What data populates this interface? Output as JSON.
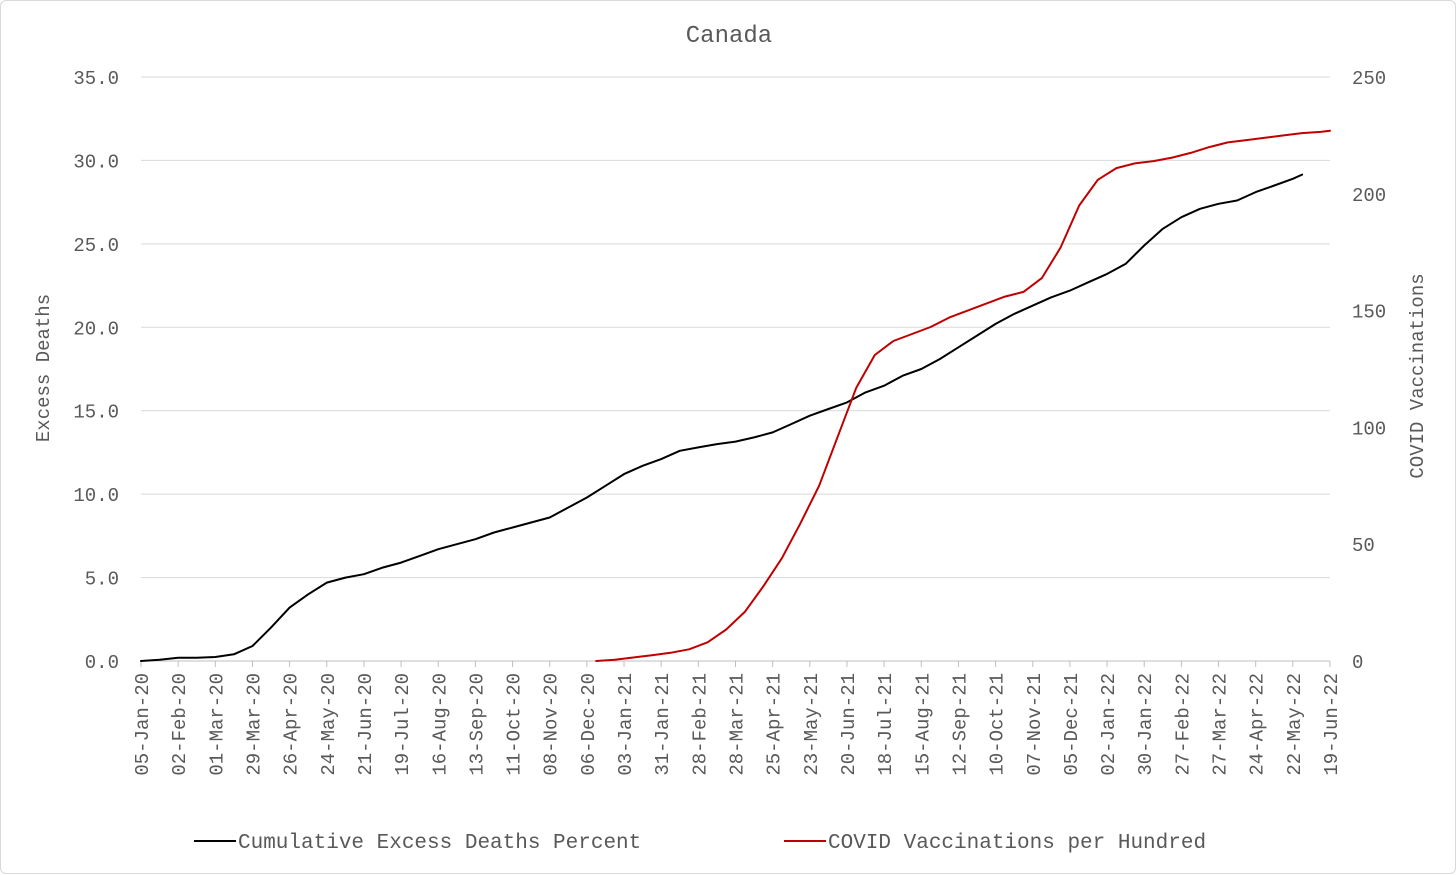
{
  "chart_data": {
    "type": "line",
    "title": "Canada",
    "ylabel_left": "Excess Deaths",
    "ylabel_right": "COVID Vaccinations",
    "ylim_left": [
      0,
      35
    ],
    "ylim_right": [
      0,
      250
    ],
    "yticks_left": [
      "0.0",
      "5.0",
      "10.0",
      "15.0",
      "20.0",
      "25.0",
      "30.0",
      "35.0"
    ],
    "yticks_right": [
      "0",
      "50",
      "100",
      "150",
      "200",
      "250"
    ],
    "x_start": "05-Jan-20",
    "x_end": "19-Jun-22",
    "xticks": [
      "05-Jan-20",
      "02-Feb-20",
      "01-Mar-20",
      "29-Mar-20",
      "26-Apr-20",
      "24-May-20",
      "21-Jun-20",
      "19-Jul-20",
      "16-Aug-20",
      "13-Sep-20",
      "11-Oct-20",
      "08-Nov-20",
      "06-Dec-20",
      "03-Jan-21",
      "31-Jan-21",
      "28-Feb-21",
      "28-Mar-21",
      "25-Apr-21",
      "23-May-21",
      "20-Jun-21",
      "18-Jul-21",
      "15-Aug-21",
      "12-Sep-21",
      "10-Oct-21",
      "07-Nov-21",
      "05-Dec-21",
      "02-Jan-22",
      "30-Jan-22",
      "27-Feb-22",
      "27-Mar-22",
      "24-Apr-22",
      "22-May-22",
      "19-Jun-22"
    ],
    "grid": true,
    "legend_position": "bottom",
    "series": [
      {
        "name": "Cumulative Excess Deaths Percent",
        "axis": "left",
        "color": "#000000",
        "x": [
          "05-Jan-20",
          "19-Jan-20",
          "02-Feb-20",
          "16-Feb-20",
          "01-Mar-20",
          "15-Mar-20",
          "29-Mar-20",
          "12-Apr-20",
          "26-Apr-20",
          "10-May-20",
          "24-May-20",
          "07-Jun-20",
          "21-Jun-20",
          "05-Jul-20",
          "19-Jul-20",
          "02-Aug-20",
          "16-Aug-20",
          "30-Aug-20",
          "13-Sep-20",
          "27-Sep-20",
          "11-Oct-20",
          "25-Oct-20",
          "08-Nov-20",
          "22-Nov-20",
          "06-Dec-20",
          "20-Dec-20",
          "03-Jan-21",
          "17-Jan-21",
          "31-Jan-21",
          "14-Feb-21",
          "28-Feb-21",
          "14-Mar-21",
          "28-Mar-21",
          "11-Apr-21",
          "25-Apr-21",
          "09-May-21",
          "23-May-21",
          "06-Jun-21",
          "20-Jun-21",
          "04-Jul-21",
          "18-Jul-21",
          "01-Aug-21",
          "15-Aug-21",
          "29-Aug-21",
          "12-Sep-21",
          "26-Sep-21",
          "10-Oct-21",
          "24-Oct-21",
          "07-Nov-21",
          "21-Nov-21",
          "05-Dec-21",
          "19-Dec-21",
          "02-Jan-22",
          "16-Jan-22",
          "30-Jan-22",
          "13-Feb-22",
          "27-Feb-22",
          "13-Mar-22",
          "27-Mar-22",
          "10-Apr-22",
          "24-Apr-22",
          "08-May-22",
          "22-May-22",
          "29-May-22"
        ],
        "values": [
          0.0,
          0.08,
          0.2,
          0.2,
          0.24,
          0.4,
          0.9,
          2.0,
          3.2,
          4.0,
          4.7,
          5.0,
          5.2,
          5.6,
          5.9,
          6.3,
          6.7,
          7.0,
          7.3,
          7.7,
          8.0,
          8.3,
          8.6,
          9.2,
          9.8,
          10.5,
          11.2,
          11.7,
          12.1,
          12.6,
          12.8,
          13.0,
          13.15,
          13.4,
          13.7,
          14.2,
          14.7,
          15.1,
          15.5,
          16.1,
          16.5,
          17.1,
          17.5,
          18.1,
          18.8,
          19.5,
          20.2,
          20.8,
          21.3,
          21.8,
          22.2,
          22.7,
          23.2,
          23.8,
          24.9,
          25.9,
          26.6,
          27.1,
          27.4,
          27.6,
          28.1,
          28.5,
          28.9,
          29.15
        ]
      },
      {
        "name": "COVID Vaccinations per Hundred",
        "axis": "right",
        "color": "#c00000",
        "x": [
          "13-Dec-20",
          "27-Dec-20",
          "10-Jan-21",
          "24-Jan-21",
          "07-Feb-21",
          "21-Feb-21",
          "07-Mar-21",
          "21-Mar-21",
          "04-Apr-21",
          "18-Apr-21",
          "02-May-21",
          "16-May-21",
          "30-May-21",
          "13-Jun-21",
          "27-Jun-21",
          "11-Jul-21",
          "25-Jul-21",
          "08-Aug-21",
          "22-Aug-21",
          "05-Sep-21",
          "19-Sep-21",
          "03-Oct-21",
          "17-Oct-21",
          "31-Oct-21",
          "14-Nov-21",
          "28-Nov-21",
          "12-Dec-21",
          "26-Dec-21",
          "09-Jan-22",
          "23-Jan-22",
          "06-Feb-22",
          "20-Feb-22",
          "06-Mar-22",
          "20-Mar-22",
          "03-Apr-22",
          "17-Apr-22",
          "01-May-22",
          "15-May-22",
          "29-May-22",
          "12-Jun-22",
          "19-Jun-22"
        ],
        "values": [
          0.0,
          0.5,
          1.5,
          2.5,
          3.5,
          5.0,
          8.0,
          13.5,
          21.0,
          32.0,
          44.0,
          59.0,
          75.0,
          96.0,
          117.0,
          131.0,
          137.0,
          140.0,
          143.0,
          147.0,
          150.0,
          153.0,
          156.0,
          158.0,
          164.0,
          177.0,
          195.0,
          206.0,
          211.0,
          213.0,
          214.0,
          215.5,
          217.5,
          220.0,
          222.0,
          223.0,
          224.0,
          225.0,
          226.0,
          226.5,
          227.0
        ]
      }
    ]
  }
}
